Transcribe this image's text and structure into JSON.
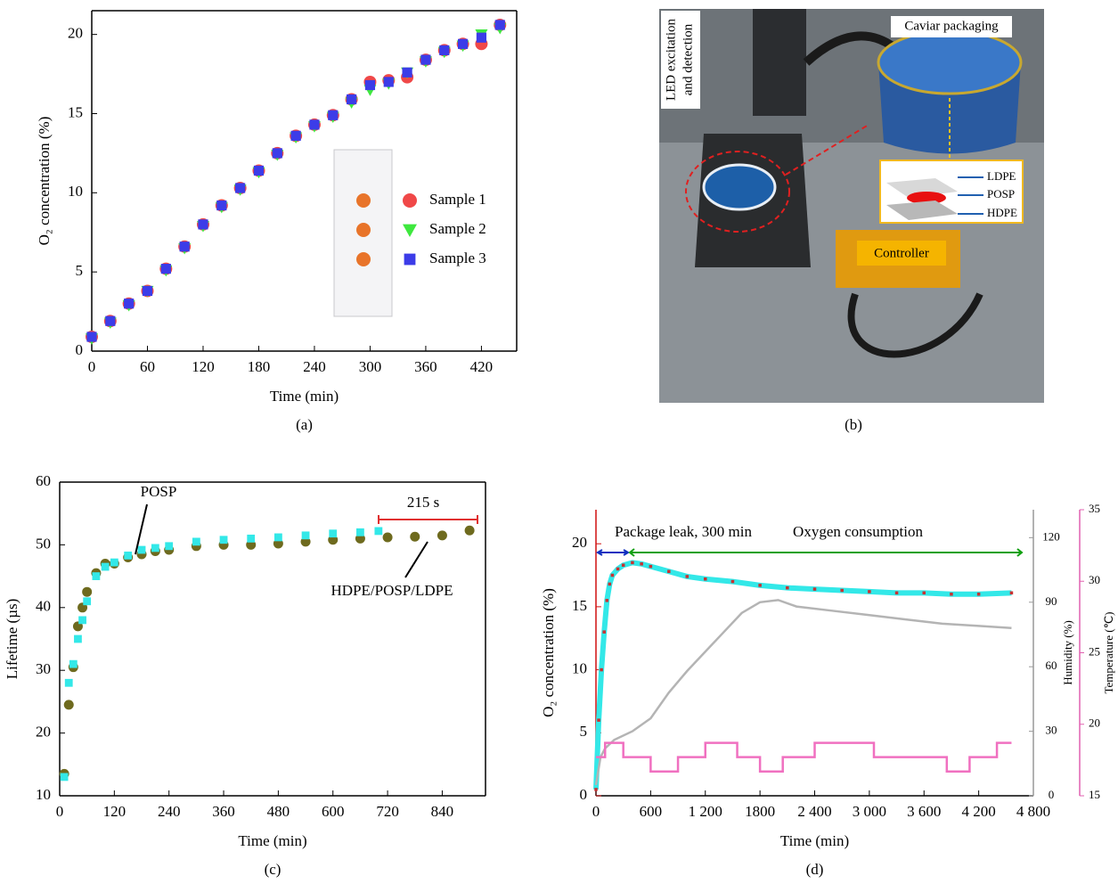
{
  "chart_data": [
    {
      "type": "scatter",
      "caption": "(a)",
      "xlabel": "Time (min)",
      "ylabel": "O₂ concentration (%)",
      "frame": true,
      "xlim": [
        0,
        458
      ],
      "ylim": [
        0,
        21.5
      ],
      "xticks": [
        0,
        60,
        120,
        180,
        240,
        300,
        360,
        420
      ],
      "yticks": [
        0,
        5,
        10,
        15,
        20
      ],
      "x": [
        0,
        20,
        40,
        60,
        80,
        100,
        120,
        140,
        160,
        180,
        200,
        220,
        240,
        260,
        280,
        300,
        320,
        340,
        360,
        380,
        400,
        420,
        440
      ],
      "series": [
        {
          "name": "Sample 1",
          "color": "#f04848",
          "marker": "circle",
          "values": [
            0.9,
            1.9,
            3.0,
            3.8,
            5.2,
            6.6,
            8.0,
            9.2,
            10.3,
            11.4,
            12.5,
            13.6,
            14.3,
            14.9,
            15.9,
            17.0,
            17.1,
            17.3,
            18.4,
            19.0,
            19.4,
            19.4,
            20.6
          ]
        },
        {
          "name": "Sample 2",
          "color": "#3ee83e",
          "marker": "triangle",
          "values": [
            0.8,
            1.8,
            2.9,
            3.8,
            5.1,
            6.5,
            7.9,
            9.1,
            10.2,
            11.3,
            12.4,
            13.5,
            14.2,
            14.8,
            15.7,
            16.5,
            16.9,
            17.6,
            18.3,
            18.9,
            19.3,
            20.0,
            20.4
          ]
        },
        {
          "name": "Sample 3",
          "color": "#3c3ce8",
          "marker": "square",
          "values": [
            0.9,
            1.9,
            3.0,
            3.8,
            5.2,
            6.6,
            8.0,
            9.2,
            10.3,
            11.4,
            12.5,
            13.6,
            14.3,
            14.9,
            15.9,
            16.8,
            17.0,
            17.6,
            18.4,
            19.0,
            19.4,
            19.8,
            20.6
          ]
        }
      ]
    },
    {
      "type": "scatter",
      "caption": "(c)",
      "xlabel": "Time (min)",
      "ylabel": "Lifetime (µs)",
      "frame": true,
      "xlim": [
        0,
        935
      ],
      "ylim": [
        10,
        60
      ],
      "xticks": [
        0,
        120,
        240,
        360,
        480,
        600,
        720,
        840
      ],
      "yticks": [
        10,
        20,
        30,
        40,
        50,
        60
      ],
      "annotations": [
        "POSP",
        "HDPE/POSP/LDPE",
        "215 s"
      ],
      "series": [
        {
          "color": "#6e6a1e",
          "marker": "circle",
          "x": [
            10,
            20,
            30,
            40,
            50,
            60,
            80,
            100,
            120,
            150,
            180,
            210,
            240,
            300,
            360,
            420,
            480,
            540,
            600,
            660,
            720,
            780,
            840,
            900
          ],
          "values": [
            13.5,
            24.5,
            30.5,
            37,
            40,
            42.5,
            45.5,
            47,
            47,
            48,
            48.5,
            49,
            49.2,
            49.8,
            50,
            50,
            50.2,
            50.5,
            50.8,
            51,
            51.2,
            51.3,
            51.5,
            52.3
          ]
        },
        {
          "color": "#33e8e8",
          "marker": "square",
          "x": [
            10,
            20,
            30,
            40,
            50,
            60,
            80,
            100,
            120,
            150,
            180,
            210,
            240,
            300,
            360,
            420,
            480,
            540,
            600,
            660,
            700
          ],
          "values": [
            13,
            28,
            31,
            35,
            38,
            41,
            45,
            46.5,
            47.2,
            48.3,
            49.2,
            49.5,
            49.8,
            50.5,
            50.8,
            51,
            51.2,
            51.5,
            51.8,
            52,
            52.2
          ]
        }
      ]
    },
    {
      "type": "line",
      "caption": "(d)",
      "xlabel": "Time (min)",
      "ylabel": "O₂ concentration (%)",
      "y2label": "Humidity (%)",
      "y3label": "Temperature (℃)",
      "frame": false,
      "y_axis_color": "#d01010",
      "y3_axis_color": "#e060b0",
      "annotations": [
        "Package leak, 300 min",
        "Oxygen consumption"
      ],
      "xlim": [
        0,
        4800
      ],
      "ylim": [
        0,
        22.7
      ],
      "y2lim": [
        0,
        133
      ],
      "y3lim": [
        15,
        35
      ],
      "xticks": [
        0,
        600,
        {
          "value": 1200,
          "label": "1 200"
        },
        1800,
        {
          "value": 2400,
          "label": "2 400"
        },
        {
          "value": 3000,
          "label": "3 000"
        },
        {
          "value": 3600,
          "label": "3 600"
        },
        {
          "value": 4200,
          "label": "4 200"
        },
        {
          "value": 4800,
          "label": "4 800"
        }
      ],
      "yticks": [
        0,
        5,
        10,
        15,
        20
      ],
      "y2ticks": [
        0,
        30,
        60,
        90,
        120
      ],
      "y3ticks": [
        15,
        20,
        25,
        30,
        35
      ],
      "series": [
        {
          "color": "#33e8e8",
          "marker": "square",
          "marker_color": "#c83232",
          "x": [
            0,
            30,
            60,
            90,
            120,
            150,
            180,
            240,
            300,
            400,
            500,
            600,
            800,
            1000,
            1200,
            1500,
            1800,
            2100,
            2400,
            2700,
            3000,
            3300,
            3600,
            3900,
            4200,
            4560
          ],
          "values": [
            0.5,
            6,
            10,
            13,
            15.5,
            16.8,
            17.5,
            18,
            18.3,
            18.5,
            18.4,
            18.2,
            17.8,
            17.4,
            17.2,
            17,
            16.7,
            16.5,
            16.4,
            16.3,
            16.2,
            16.1,
            16.1,
            16.0,
            16.0,
            16.1
          ]
        },
        {
          "color": "#b4b4b4",
          "axis": "y2",
          "x": [
            0,
            50,
            100,
            200,
            400,
            600,
            800,
            1000,
            1200,
            1400,
            1600,
            1800,
            2000,
            2200,
            2600,
            3000,
            3400,
            3800,
            4200,
            4560
          ],
          "values": [
            5,
            18,
            22,
            26,
            30,
            36,
            48,
            58,
            67,
            76,
            85,
            90,
            91,
            88,
            86,
            84,
            82,
            80,
            79,
            78
          ]
        },
        {
          "color": "#f070c0",
          "axis": "y3",
          "step": true,
          "x": [
            0,
            100,
            300,
            600,
            900,
            1200,
            1550,
            1800,
            2050,
            2400,
            3050,
            3850,
            4100,
            4400,
            4560
          ],
          "values": [
            17.7,
            18.7,
            17.7,
            16.7,
            17.7,
            18.7,
            17.7,
            16.7,
            17.7,
            18.7,
            17.7,
            16.7,
            17.7,
            18.7,
            18.7
          ]
        }
      ]
    }
  ],
  "photo": {
    "caption": "(b)",
    "labels": {
      "packaging": "Caviar packaging",
      "led": [
        "LED excitation",
        "and detection"
      ],
      "layers": [
        "LDPE",
        "POSP",
        "HDPE"
      ],
      "controller": "Controller"
    }
  }
}
